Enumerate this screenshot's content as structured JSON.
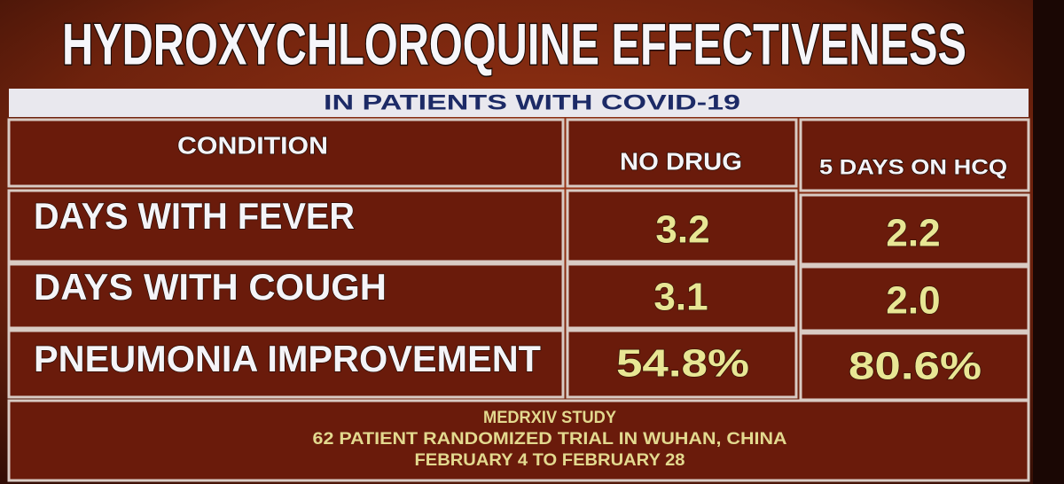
{
  "header": {
    "title": "HYDROXYCHLOROQUINE EFFECTIVENESS",
    "subtitle": "IN PATIENTS WITH COVID-19"
  },
  "table": {
    "header": [
      "CONDITION",
      "NO DRUG",
      "5 DAYS ON HCQ"
    ],
    "rows": [
      [
        "DAYS WITH FEVER",
        "3.2",
        "2.2"
      ],
      [
        "DAYS WITH COUGH",
        "3.1",
        "2.0"
      ],
      [
        "PNEUMONIA IMPROVEMENT",
        "54.8%",
        "80.6%"
      ]
    ]
  },
  "footer": [
    "MEDRXIV STUDY",
    "62 PATIENT RANDOMIZED TRIAL IN WUHAN, CHINA",
    "FEBRUARY 4 TO FEBRUARY 28"
  ]
}
